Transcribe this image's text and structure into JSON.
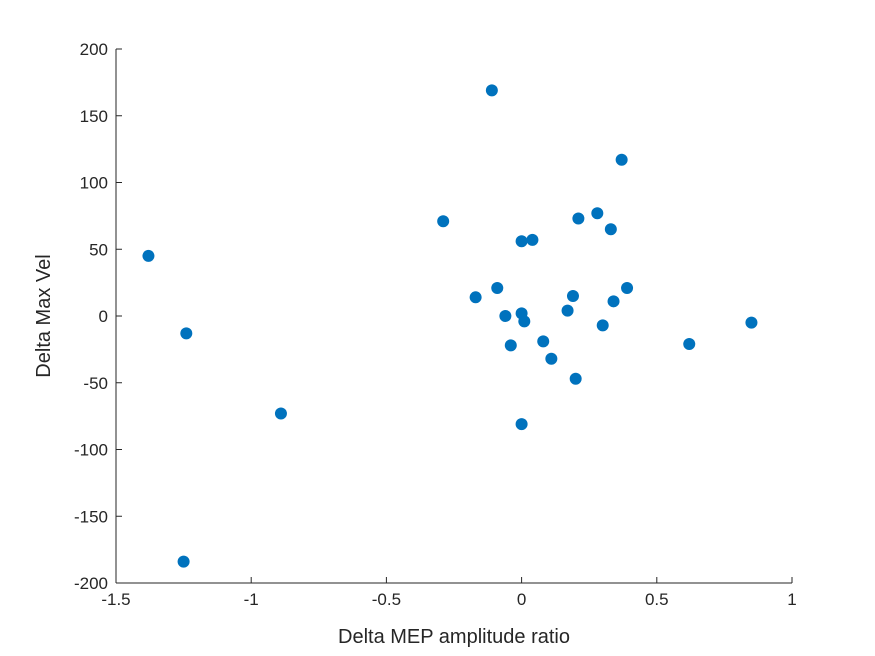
{
  "chart_data": {
    "type": "scatter",
    "title": "",
    "xlabel": "Delta MEP amplitude ratio",
    "ylabel": "Delta Max Vel",
    "xlim": [
      -1.5,
      1
    ],
    "ylim": [
      -200,
      200
    ],
    "xticks": [
      -1.5,
      -1,
      -0.5,
      0,
      0.5,
      1
    ],
    "xtick_labels": [
      "-1.5",
      "-1",
      "-0.5",
      "0",
      "0.5",
      "1"
    ],
    "yticks": [
      -200,
      -150,
      -100,
      -50,
      0,
      50,
      100,
      150,
      200
    ],
    "ytick_labels": [
      "-200",
      "-150",
      "-100",
      "-50",
      "0",
      "50",
      "100",
      "150",
      "200"
    ],
    "grid": false,
    "marker_color": "#0072BD",
    "series": [
      {
        "points": [
          {
            "x": -1.38,
            "y": 45
          },
          {
            "x": -1.24,
            "y": -13
          },
          {
            "x": -1.25,
            "y": -184
          },
          {
            "x": -0.89,
            "y": -73
          },
          {
            "x": -0.29,
            "y": 71
          },
          {
            "x": -0.11,
            "y": 169
          },
          {
            "x": -0.17,
            "y": 14
          },
          {
            "x": -0.09,
            "y": 21
          },
          {
            "x": -0.06,
            "y": 0
          },
          {
            "x": -0.04,
            "y": -22
          },
          {
            "x": 0.0,
            "y": 2
          },
          {
            "x": 0.01,
            "y": -4
          },
          {
            "x": 0.0,
            "y": 56
          },
          {
            "x": 0.04,
            "y": 57
          },
          {
            "x": 0.0,
            "y": -81
          },
          {
            "x": 0.08,
            "y": -19
          },
          {
            "x": 0.11,
            "y": -32
          },
          {
            "x": 0.17,
            "y": 4
          },
          {
            "x": 0.19,
            "y": 15
          },
          {
            "x": 0.2,
            "y": -47
          },
          {
            "x": 0.21,
            "y": 73
          },
          {
            "x": 0.28,
            "y": 77
          },
          {
            "x": 0.3,
            "y": -7
          },
          {
            "x": 0.33,
            "y": 65
          },
          {
            "x": 0.34,
            "y": 11
          },
          {
            "x": 0.37,
            "y": 117
          },
          {
            "x": 0.39,
            "y": 21
          },
          {
            "x": 0.62,
            "y": -21
          },
          {
            "x": 0.85,
            "y": -5
          }
        ]
      }
    ]
  }
}
